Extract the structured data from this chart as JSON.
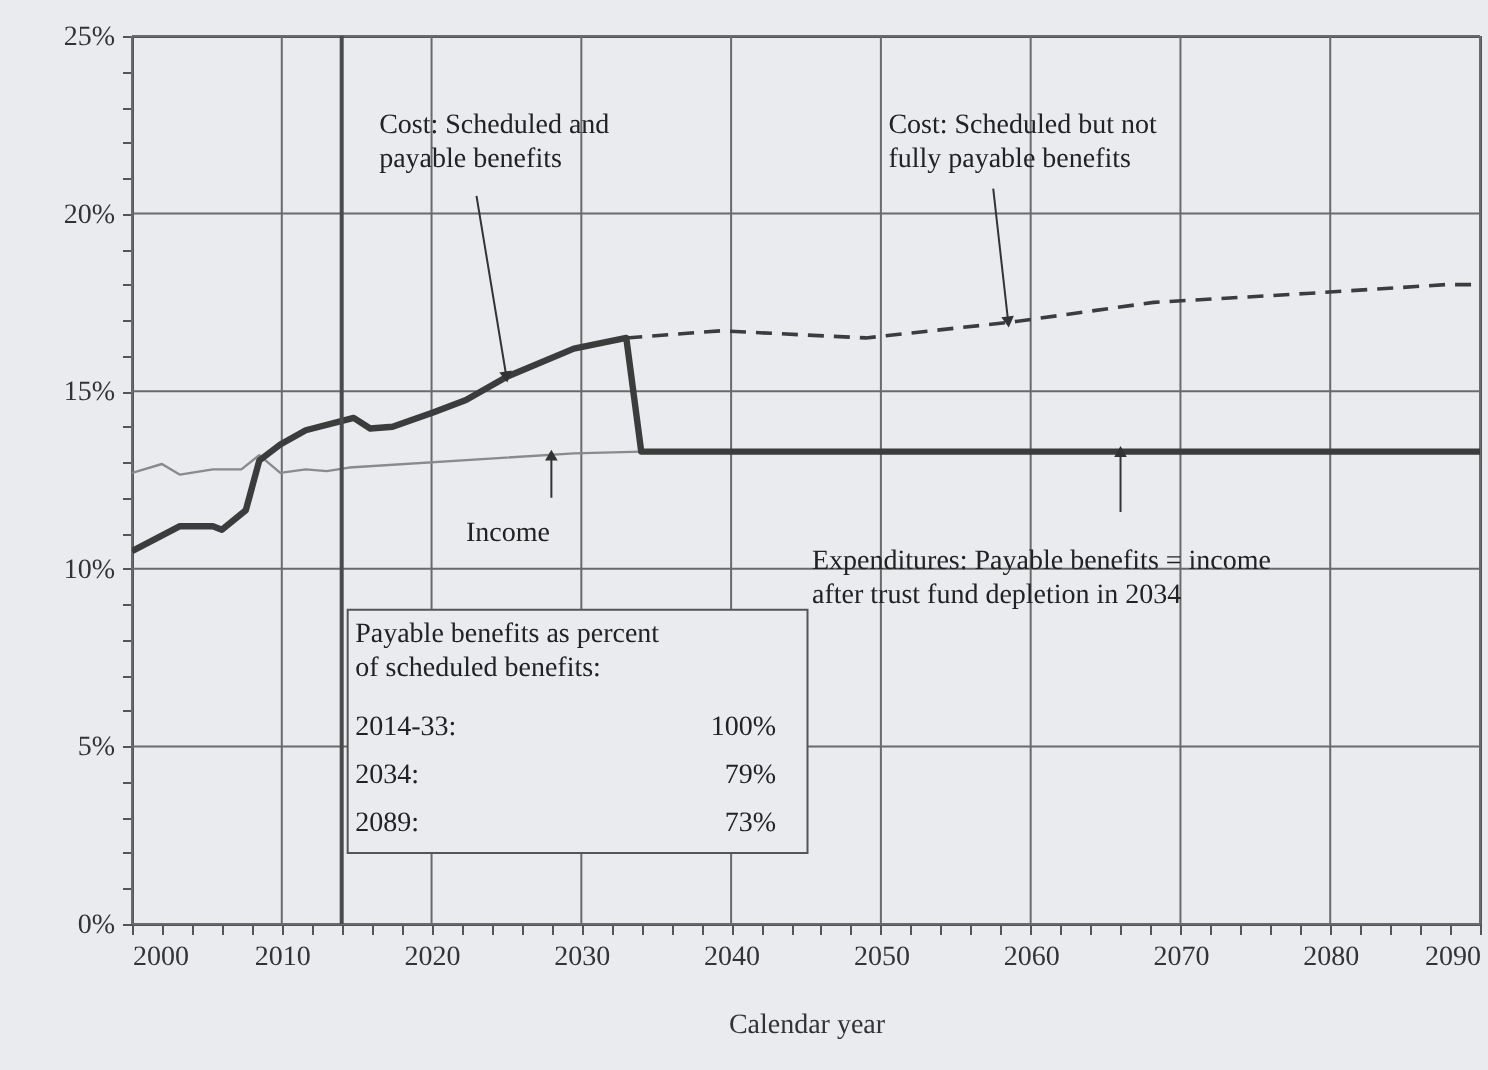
{
  "chart_data": {
    "type": "line",
    "xlabel": "Calendar year",
    "xlim": [
      2000,
      2090
    ],
    "ylim": [
      0,
      25
    ],
    "xticks": [
      2000,
      {
        "value": 2002,
        "label": null
      },
      {
        "value": 2004,
        "label": null
      },
      {
        "value": 2006,
        "label": null
      },
      {
        "value": 2008,
        "label": null
      },
      2010,
      {
        "value": 2012,
        "label": null
      },
      {
        "value": 2014,
        "label": null
      },
      {
        "value": 2016,
        "label": null
      },
      {
        "value": 2018,
        "label": null
      },
      2020,
      {
        "value": 2022,
        "label": null
      },
      {
        "value": 2024,
        "label": null
      },
      {
        "value": 2026,
        "label": null
      },
      {
        "value": 2028,
        "label": null
      },
      2030,
      {
        "value": 2032,
        "label": null
      },
      {
        "value": 2034,
        "label": null
      },
      {
        "value": 2036,
        "label": null
      },
      {
        "value": 2038,
        "label": null
      },
      2040,
      {
        "value": 2042,
        "label": null
      },
      {
        "value": 2044,
        "label": null
      },
      {
        "value": 2046,
        "label": null
      },
      {
        "value": 2048,
        "label": null
      },
      2050,
      {
        "value": 2052,
        "label": null
      },
      {
        "value": 2054,
        "label": null
      },
      {
        "value": 2056,
        "label": null
      },
      {
        "value": 2058,
        "label": null
      },
      2060,
      {
        "value": 2062,
        "label": null
      },
      {
        "value": 2064,
        "label": null
      },
      {
        "value": 2066,
        "label": null
      },
      {
        "value": 2068,
        "label": null
      },
      2070,
      {
        "value": 2072,
        "label": null
      },
      {
        "value": 2074,
        "label": null
      },
      {
        "value": 2076,
        "label": null
      },
      {
        "value": 2078,
        "label": null
      },
      2080,
      {
        "value": 2082,
        "label": null
      },
      {
        "value": 2084,
        "label": null
      },
      {
        "value": 2086,
        "label": null
      },
      {
        "value": 2088,
        "label": null
      },
      2090
    ],
    "yticks": [
      {
        "value": 0,
        "label": "0%"
      },
      {
        "value": 1,
        "label": null
      },
      {
        "value": 2,
        "label": null
      },
      {
        "value": 3,
        "label": null
      },
      {
        "value": 4,
        "label": null
      },
      {
        "value": 5,
        "label": "5%"
      },
      {
        "value": 6,
        "label": null
      },
      {
        "value": 7,
        "label": null
      },
      {
        "value": 8,
        "label": null
      },
      {
        "value": 9,
        "label": null
      },
      {
        "value": 10,
        "label": "10%"
      },
      {
        "value": 11,
        "label": null
      },
      {
        "value": 12,
        "label": null
      },
      {
        "value": 13,
        "label": null
      },
      {
        "value": 14,
        "label": null
      },
      {
        "value": 15,
        "label": "15%"
      },
      {
        "value": 16,
        "label": null
      },
      {
        "value": 17,
        "label": null
      },
      {
        "value": 18,
        "label": null
      },
      {
        "value": 19,
        "label": null
      },
      {
        "value": 20,
        "label": "20%"
      },
      {
        "value": 21,
        "label": null
      },
      {
        "value": 22,
        "label": null
      },
      {
        "value": 23,
        "label": null
      },
      {
        "value": 24,
        "label": null
      },
      {
        "value": 25,
        "label": "25%"
      }
    ],
    "grid": true,
    "ref_lines": [
      {
        "axis": "x",
        "value": 2014,
        "color": "#4a4a4a"
      }
    ],
    "series": [
      {
        "color": "#8a8a8a",
        "line_style": "solid",
        "x": [
          2000,
          2002,
          2003.2,
          2005.4,
          2007.3,
          2008.5,
          2009.9,
          2011.6,
          2013,
          2014.5,
          2029.5,
          2034
        ],
        "values": [
          12.7,
          12.95,
          12.65,
          12.8,
          12.8,
          13.2,
          12.7,
          12.8,
          12.75,
          12.85,
          13.25,
          13.3
        ]
      },
      {
        "color": "#3c3c3c",
        "line_style": "dashed",
        "x": [
          2033,
          2039.3,
          2049,
          2058.8,
          2068.2,
          2078.4,
          2087.7,
          2090
        ],
        "values": [
          16.5,
          16.7,
          16.5,
          16.95,
          17.5,
          17.75,
          18.0,
          18.0
        ]
      },
      {
        "color": "#3c3c3c",
        "line_style": "solid",
        "x": [
          2000,
          2003.2,
          2005.4,
          2006,
          2007.6,
          2008.5,
          2009.9,
          2011.6,
          2014.8,
          2015.9,
          2017.4,
          2020.1,
          2022.3,
          2025,
          2029.5,
          2033,
          2034,
          2090
        ],
        "values": [
          10.5,
          11.2,
          11.2,
          11.1,
          11.65,
          13.05,
          13.5,
          13.9,
          14.25,
          13.95,
          14.0,
          14.4,
          14.75,
          15.4,
          16.2,
          16.5,
          13.3,
          13.3
        ]
      }
    ],
    "annotations": [
      {
        "text": "Cost: Scheduled and payable benefits",
        "x": 2025,
        "y": 15.4
      },
      {
        "text": "Cost: Scheduled but not fully payable benefits",
        "x": 2058.5,
        "y": 16.95
      },
      {
        "text": "Income",
        "x": 2028,
        "y": 13.2
      },
      {
        "text": "Expenditures: Payable benefits = income after trust fund depletion in 2034",
        "x": 2066,
        "y": 13.3
      },
      "Payable benefits as percent of scheduled benefits:",
      "2014-33:",
      "100%",
      "2034:",
      "79%",
      "2089:",
      "73%"
    ]
  }
}
